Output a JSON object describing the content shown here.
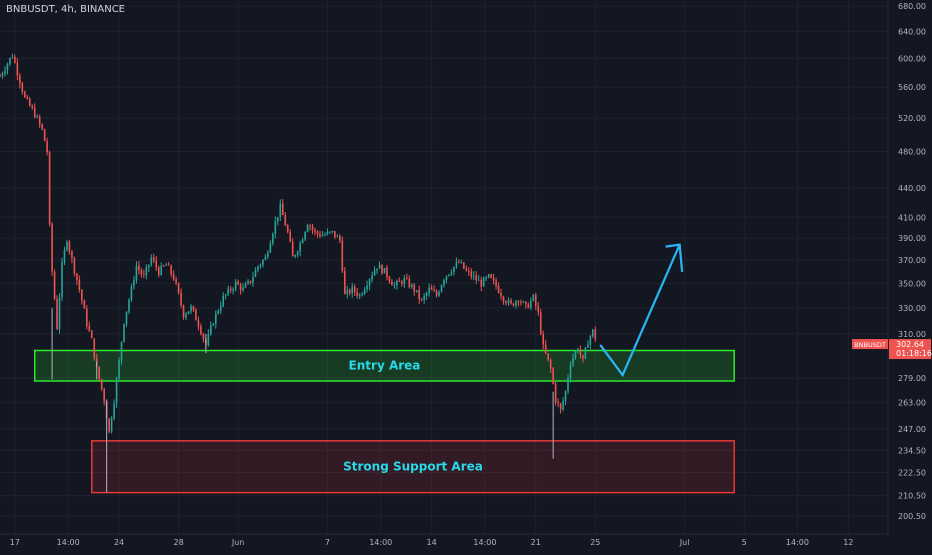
{
  "header": {
    "symbol_line": "BNBUSDT, 4h, BINANCE"
  },
  "chart_data": {
    "type": "candlestick",
    "symbol": "BNBUSDT",
    "timeframe": "4h",
    "exchange": "BINANCE",
    "y_scale": "log",
    "ylim": [
      192,
      690
    ],
    "y_ticks": [
      "680.00",
      "640.00",
      "600.00",
      "560.00",
      "520.00",
      "480.00",
      "440.00",
      "410.00",
      "390.00",
      "370.00",
      "350.00",
      "330.00",
      "310.00",
      "279.00",
      "263.00",
      "247.00",
      "234.50",
      "222.50",
      "210.50",
      "200.50"
    ],
    "x_ticks": [
      "17",
      "14:00",
      "24",
      "28",
      "Jun",
      "7",
      "14:00",
      "14",
      "14:00",
      "21",
      "25",
      "Jul",
      "5",
      "14:00",
      "12"
    ],
    "x_range": [
      "2021-05-16T00:00",
      "2021-07-14T16:00"
    ],
    "colors": {
      "up": "#26a69a",
      "down": "#ef5350",
      "price_tag": "#ef5350",
      "arrow": "#29b6f6",
      "entry": "#2ee82e",
      "support": "#e53935",
      "zone_text": "#29d9e8"
    },
    "zones": [
      {
        "label": "Entry Area",
        "from": "2021-05-18T08:00",
        "to": "2021-07-04T08:00",
        "low": 277,
        "high": 298
      },
      {
        "label": "Strong Support Area",
        "from": "2021-05-22T04:00",
        "to": "2021-07-04T08:00",
        "low": 212,
        "high": 240
      }
    ],
    "projection": [
      {
        "t": "2021-06-25T08:00",
        "price": 302
      },
      {
        "t": "2021-06-26T20:00",
        "price": 281
      },
      {
        "t": "2021-06-30T16:00",
        "price": 384
      },
      {
        "t": "2021-06-30T20:00",
        "price": 372
      }
    ],
    "last_price": {
      "label": "BNBUSDT",
      "price": "302.64",
      "countdown": "01:18:16"
    },
    "ohlc_path": [
      [
        "2021-05-16T00:00",
        575
      ],
      [
        "2021-05-16T20:00",
        605
      ],
      [
        "2021-05-17T16:00",
        545
      ],
      [
        "2021-05-18T08:00",
        525
      ],
      [
        "2021-05-18T20:00",
        505
      ],
      [
        "2021-05-19T04:00",
        480
      ],
      [
        "2021-05-19T08:00",
        400
      ],
      [
        "2021-05-19T12:00",
        360
      ],
      [
        "2021-05-19T20:00",
        315
      ],
      [
        "2021-05-20T04:00",
        365
      ],
      [
        "2021-05-20T12:00",
        390
      ],
      [
        "2021-05-20T20:00",
        370
      ],
      [
        "2021-05-21T08:00",
        345
      ],
      [
        "2021-05-21T20:00",
        318
      ],
      [
        "2021-05-22T04:00",
        305
      ],
      [
        "2021-05-22T12:00",
        285
      ],
      [
        "2021-05-23T00:00",
        265
      ],
      [
        "2021-05-23T08:00",
        245
      ],
      [
        "2021-05-23T16:00",
        265
      ],
      [
        "2021-05-24T00:00",
        290
      ],
      [
        "2021-05-24T08:00",
        320
      ],
      [
        "2021-05-24T20:00",
        345
      ],
      [
        "2021-05-25T04:00",
        365
      ],
      [
        "2021-05-25T16:00",
        355
      ],
      [
        "2021-05-26T04:00",
        372
      ],
      [
        "2021-05-26T16:00",
        360
      ],
      [
        "2021-05-27T04:00",
        366
      ],
      [
        "2021-05-27T16:00",
        355
      ],
      [
        "2021-05-28T08:00",
        325
      ],
      [
        "2021-05-28T20:00",
        330
      ],
      [
        "2021-05-29T08:00",
        318
      ],
      [
        "2021-05-29T20:00",
        302
      ],
      [
        "2021-05-30T08:00",
        320
      ],
      [
        "2021-05-31T00:00",
        338
      ],
      [
        "2021-05-31T20:00",
        350
      ],
      [
        "2021-06-01T08:00",
        345
      ],
      [
        "2021-06-01T20:00",
        352
      ],
      [
        "2021-06-02T08:00",
        365
      ],
      [
        "2021-06-02T20:00",
        372
      ],
      [
        "2021-06-03T12:00",
        405
      ],
      [
        "2021-06-03T20:00",
        420
      ],
      [
        "2021-06-04T08:00",
        395
      ],
      [
        "2021-06-04T16:00",
        372
      ],
      [
        "2021-06-05T04:00",
        385
      ],
      [
        "2021-06-05T16:00",
        405
      ],
      [
        "2021-06-06T04:00",
        395
      ],
      [
        "2021-06-06T16:00",
        393
      ],
      [
        "2021-06-07T08:00",
        395
      ],
      [
        "2021-06-07T20:00",
        388
      ],
      [
        "2021-06-08T04:00",
        340
      ],
      [
        "2021-06-08T16:00",
        345
      ],
      [
        "2021-06-09T04:00",
        340
      ],
      [
        "2021-06-09T20:00",
        355
      ],
      [
        "2021-06-10T08:00",
        365
      ],
      [
        "2021-06-10T20:00",
        360
      ],
      [
        "2021-06-11T12:00",
        348
      ],
      [
        "2021-06-12T04:00",
        353
      ],
      [
        "2021-06-12T20:00",
        345
      ],
      [
        "2021-06-13T08:00",
        335
      ],
      [
        "2021-06-13T20:00",
        345
      ],
      [
        "2021-06-14T08:00",
        340
      ],
      [
        "2021-06-14T20:00",
        355
      ],
      [
        "2021-06-15T08:00",
        362
      ],
      [
        "2021-06-15T20:00",
        368
      ],
      [
        "2021-06-16T08:00",
        360
      ],
      [
        "2021-06-16T20:00",
        355
      ],
      [
        "2021-06-17T08:00",
        350
      ],
      [
        "2021-06-17T20:00",
        355
      ],
      [
        "2021-06-18T08:00",
        348
      ],
      [
        "2021-06-18T20:00",
        338
      ],
      [
        "2021-06-19T08:00",
        332
      ],
      [
        "2021-06-19T20:00",
        338
      ],
      [
        "2021-06-20T08:00",
        330
      ],
      [
        "2021-06-20T20:00",
        338
      ],
      [
        "2021-06-21T04:00",
        325
      ],
      [
        "2021-06-21T12:00",
        300
      ],
      [
        "2021-06-22T00:00",
        285
      ],
      [
        "2021-06-22T08:00",
        265
      ],
      [
        "2021-06-22T16:00",
        258
      ],
      [
        "2021-06-23T00:00",
        270
      ],
      [
        "2021-06-23T08:00",
        290
      ],
      [
        "2021-06-23T20:00",
        300
      ],
      [
        "2021-06-24T04:00",
        290
      ],
      [
        "2021-06-24T12:00",
        305
      ],
      [
        "2021-06-24T20:00",
        312
      ],
      [
        "2021-06-25T04:00",
        302.64
      ]
    ]
  }
}
